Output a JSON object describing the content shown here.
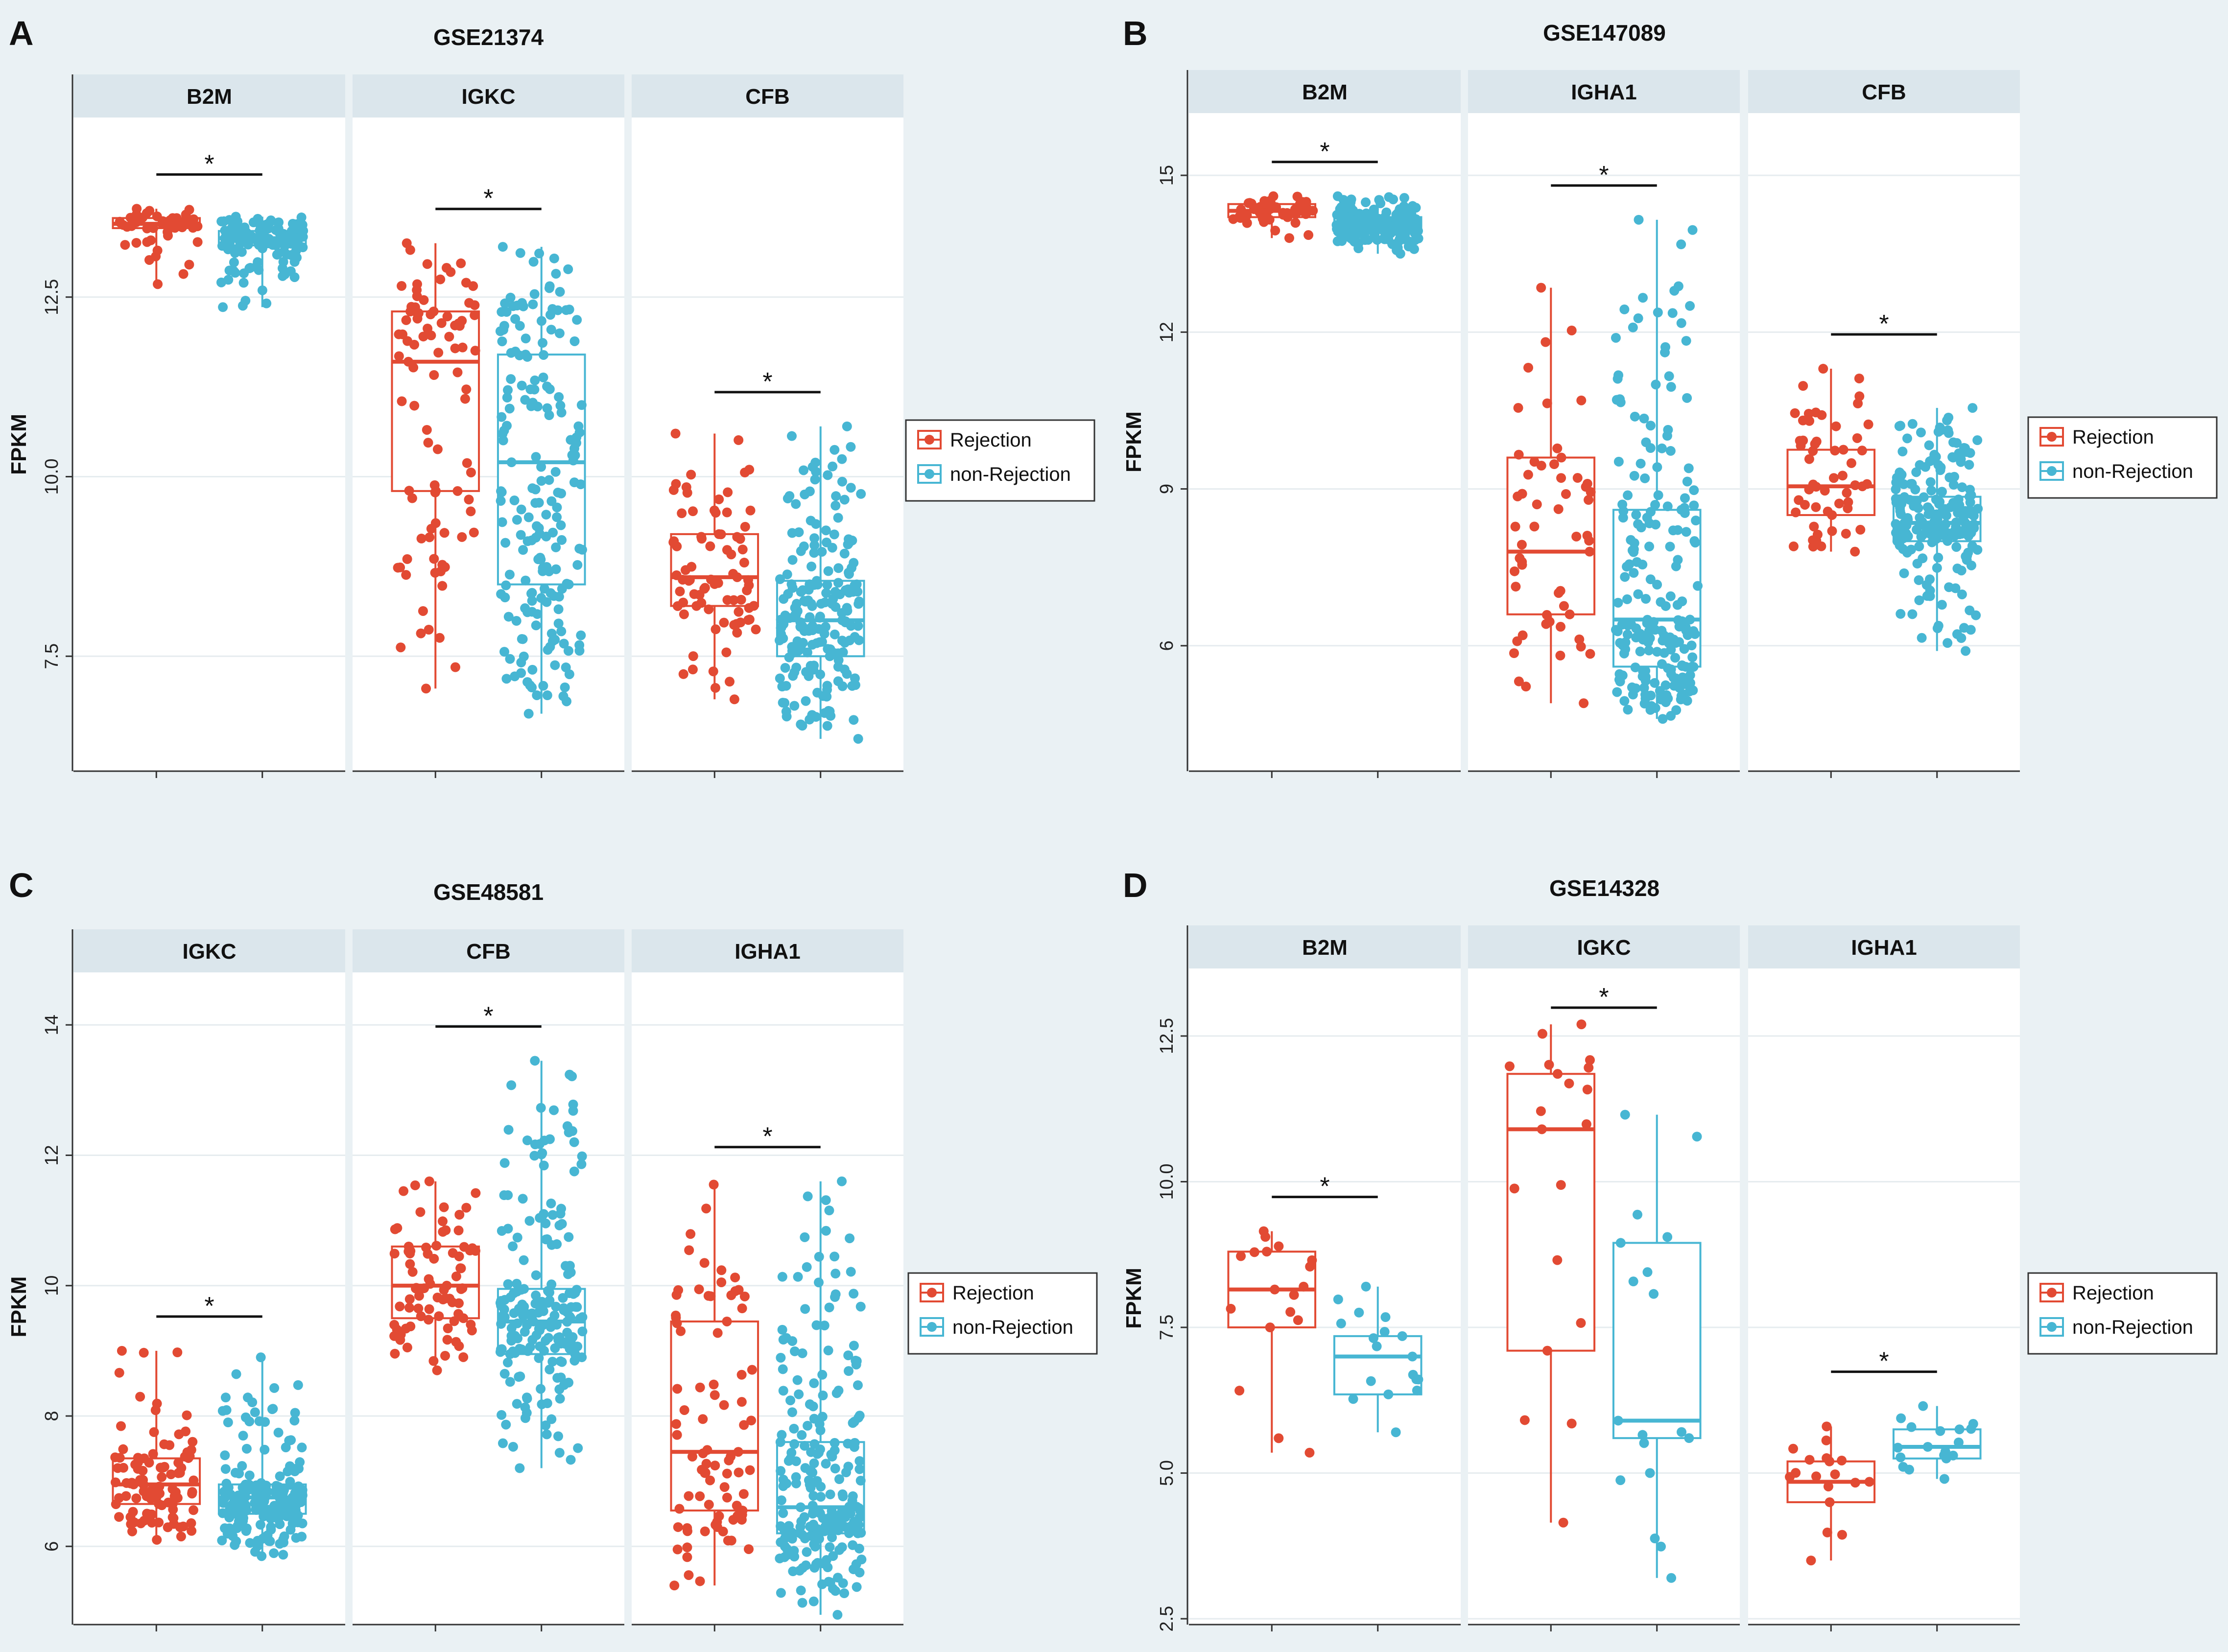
{
  "colors": {
    "rejection": "#e24a33",
    "non_rejection": "#47b6d3",
    "strip": "#dbe6ec",
    "background": "#eaf1f4"
  },
  "chart_data": [
    {
      "type": "box",
      "panel_label": "A",
      "title": "GSE21374",
      "ylabel": "FPKM",
      "ylim": [
        5.9,
        15.0
      ],
      "yticks": [
        7.5,
        10.0,
        12.5
      ],
      "yticklabels": [
        "7.5",
        "10.0",
        "12.5"
      ],
      "legend": [
        "Rejection",
        "non-Rejection"
      ],
      "legend_position": "right",
      "facets": [
        {
          "gene": "B2M",
          "significance": "*",
          "rejection": {
            "n": 60,
            "min": 12.68,
            "q1": 13.46,
            "median": 13.52,
            "q3": 13.6,
            "max": 13.73
          },
          "non_rejection": {
            "n": 140,
            "min": 12.36,
            "q1": 13.22,
            "median": 13.32,
            "q3": 13.42,
            "max": 13.62
          }
        },
        {
          "gene": "IGKC",
          "significance": "*",
          "rejection": {
            "n": 90,
            "min": 7.05,
            "q1": 9.8,
            "median": 11.6,
            "q3": 12.3,
            "max": 13.25
          },
          "non_rejection": {
            "n": 190,
            "min": 6.7,
            "q1": 8.5,
            "median": 10.2,
            "q3": 11.7,
            "max": 13.2
          }
        },
        {
          "gene": "CFB",
          "significance": "*",
          "rejection": {
            "n": 80,
            "min": 6.9,
            "q1": 8.2,
            "median": 8.6,
            "q3": 9.2,
            "max": 10.6
          },
          "non_rejection": {
            "n": 200,
            "min": 6.35,
            "q1": 7.5,
            "median": 8.0,
            "q3": 8.55,
            "max": 10.7
          }
        }
      ]
    },
    {
      "type": "box",
      "panel_label": "B",
      "title": "GSE147089",
      "ylabel": "FPKM",
      "ylim": [
        3.6,
        16.2
      ],
      "yticks": [
        6,
        9,
        12,
        15
      ],
      "yticklabels": [
        "6",
        "9",
        "12",
        "15"
      ],
      "legend": [
        "Rejection",
        "non-Rejection"
      ],
      "legend_position": "right",
      "facets": [
        {
          "gene": "B2M",
          "significance": "*",
          "rejection": {
            "n": 50,
            "min": 13.8,
            "q1": 14.2,
            "median": 14.32,
            "q3": 14.45,
            "max": 14.6
          },
          "non_rejection": {
            "n": 200,
            "min": 13.5,
            "q1": 13.9,
            "median": 14.05,
            "q3": 14.2,
            "max": 14.6
          }
        },
        {
          "gene": "IGHA1",
          "significance": "*",
          "rejection": {
            "n": 55,
            "min": 4.9,
            "q1": 6.6,
            "median": 7.8,
            "q3": 9.6,
            "max": 12.85
          },
          "non_rejection": {
            "n": 210,
            "min": 4.6,
            "q1": 5.6,
            "median": 6.5,
            "q3": 8.6,
            "max": 14.15
          }
        },
        {
          "gene": "CFB",
          "significance": "*",
          "rejection": {
            "n": 55,
            "min": 7.8,
            "q1": 8.5,
            "median": 9.05,
            "q3": 9.75,
            "max": 11.3
          },
          "non_rejection": {
            "n": 200,
            "min": 5.9,
            "q1": 8.0,
            "median": 8.35,
            "q3": 8.85,
            "max": 10.55
          }
        }
      ]
    },
    {
      "type": "box",
      "panel_label": "C",
      "title": "GSE48581",
      "ylabel": "FPKM",
      "ylim": [
        4.8,
        14.55
      ],
      "yticks": [
        6,
        8,
        10,
        12,
        14
      ],
      "yticklabels": [
        "6",
        "8",
        "10",
        "12",
        "14"
      ],
      "legend": [
        "Rejection",
        "non-Rejection"
      ],
      "legend_position": "right",
      "facets": [
        {
          "gene": "IGKC",
          "significance": "*",
          "rejection": {
            "n": 100,
            "min": 6.1,
            "q1": 6.65,
            "median": 6.95,
            "q3": 7.35,
            "max": 9.0
          },
          "non_rejection": {
            "n": 200,
            "min": 5.85,
            "q1": 6.5,
            "median": 6.75,
            "q3": 6.95,
            "max": 8.9
          }
        },
        {
          "gene": "CFB",
          "significance": "*",
          "rejection": {
            "n": 80,
            "min": 8.7,
            "q1": 9.5,
            "median": 10.0,
            "q3": 10.6,
            "max": 11.6
          },
          "non_rejection": {
            "n": 200,
            "min": 7.2,
            "q1": 8.95,
            "median": 9.45,
            "q3": 9.95,
            "max": 13.45
          }
        },
        {
          "gene": "IGHA1",
          "significance": "*",
          "rejection": {
            "n": 85,
            "min": 5.4,
            "q1": 6.55,
            "median": 7.45,
            "q3": 9.45,
            "max": 11.55
          },
          "non_rejection": {
            "n": 220,
            "min": 4.95,
            "q1": 6.2,
            "median": 6.6,
            "q3": 7.6,
            "max": 11.6
          }
        }
      ]
    },
    {
      "type": "box",
      "panel_label": "D",
      "title": "GSE14328",
      "ylabel": "FPKM",
      "ylim": [
        2.4,
        13.6
      ],
      "yticks": [
        2.5,
        5.0,
        7.5,
        10.0,
        12.5
      ],
      "yticklabels": [
        "2.5",
        "5.0",
        "7.5",
        "10.0",
        "12.5"
      ],
      "legend": [
        "Rejection",
        "non-Rejection"
      ],
      "legend_position": "right",
      "facets": [
        {
          "gene": "B2M",
          "significance": "*",
          "rejection": {
            "n": 18,
            "min": 5.35,
            "q1": 7.5,
            "median": 8.15,
            "q3": 8.8,
            "max": 9.15
          },
          "non_rejection": {
            "n": 18,
            "min": 5.7,
            "q1": 6.35,
            "median": 7.0,
            "q3": 7.35,
            "max": 8.2
          }
        },
        {
          "gene": "IGKC",
          "significance": "*",
          "rejection": {
            "n": 20,
            "min": 4.15,
            "q1": 7.1,
            "median": 10.9,
            "q3": 11.85,
            "max": 12.7
          },
          "non_rejection": {
            "n": 18,
            "min": 3.2,
            "q1": 5.6,
            "median": 5.9,
            "q3": 8.95,
            "max": 11.15
          }
        },
        {
          "gene": "IGHA1",
          "significance": "*",
          "rejection": {
            "n": 18,
            "min": 3.5,
            "q1": 4.5,
            "median": 4.85,
            "q3": 5.2,
            "max": 5.8
          },
          "non_rejection": {
            "n": 18,
            "min": 4.9,
            "q1": 5.25,
            "median": 5.45,
            "q3": 5.75,
            "max": 6.15
          }
        }
      ]
    }
  ]
}
